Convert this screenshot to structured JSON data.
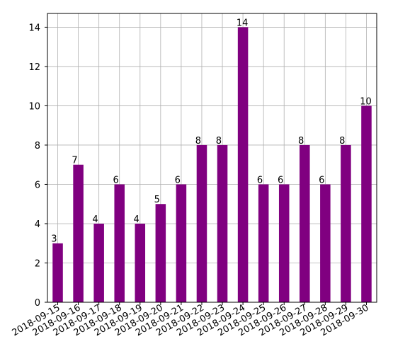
{
  "chart_data": {
    "type": "bar",
    "categories": [
      "2018-09-15",
      "2018-09-16",
      "2018-09-17",
      "2018-09-18",
      "2018-09-19",
      "2018-09-20",
      "2018-09-21",
      "2018-09-22",
      "2018-09-23",
      "2018-09-24",
      "2018-09-25",
      "2018-09-26",
      "2018-09-27",
      "2018-09-28",
      "2018-09-29",
      "2018-09-30"
    ],
    "values": [
      3,
      7,
      4,
      6,
      4,
      5,
      6,
      8,
      8,
      14,
      6,
      6,
      8,
      6,
      8,
      10
    ],
    "color": "#800080",
    "ylim": [
      0,
      14.7
    ],
    "yticks": [
      0,
      2,
      4,
      6,
      8,
      10,
      12,
      14
    ],
    "grid": true
  }
}
